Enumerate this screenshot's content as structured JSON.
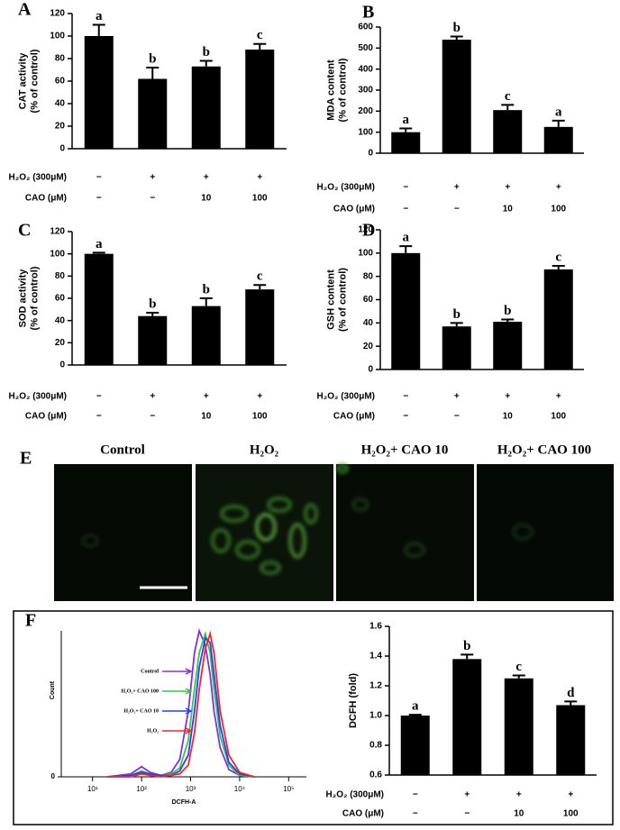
{
  "chart_data": [
    {
      "type": "bar",
      "panel": "A",
      "ylabel": [
        "CAT activity",
        "(% of control)"
      ],
      "values": [
        100,
        62,
        73,
        88
      ],
      "errors": [
        10,
        10,
        5,
        5
      ],
      "letters": [
        "a",
        "b",
        "b",
        "c"
      ],
      "color": "#000000",
      "ylim": [
        0,
        120
      ],
      "yticks": [
        0,
        20,
        40,
        60,
        80,
        100,
        120
      ],
      "treatments": [
        {
          "name": "H₂O₂ (300μM)",
          "values": [
            "−",
            "+",
            "+",
            "+"
          ]
        },
        {
          "name": "CAO (μM)",
          "values": [
            "−",
            "−",
            "10",
            "100"
          ]
        }
      ]
    },
    {
      "type": "bar",
      "panel": "B",
      "ylabel": [
        "MDA content",
        "(% of control)"
      ],
      "values": [
        100,
        540,
        205,
        125
      ],
      "errors": [
        18,
        15,
        25,
        30
      ],
      "letters": [
        "a",
        "b",
        "c",
        "a"
      ],
      "color": "#000000",
      "ylim": [
        0,
        600
      ],
      "yticks": [
        0,
        100,
        200,
        300,
        400,
        500,
        600
      ],
      "treatments": [
        {
          "name": "H₂O₂ (300μM)",
          "values": [
            "−",
            "+",
            "+",
            "+"
          ]
        },
        {
          "name": "CAO (μM)",
          "values": [
            "−",
            "−",
            "10",
            "100"
          ]
        }
      ]
    },
    {
      "type": "bar",
      "panel": "C",
      "ylabel": [
        "SOD activity",
        "(% of control)"
      ],
      "values": [
        100,
        44,
        53,
        68
      ],
      "errors": [
        1,
        3,
        7,
        4
      ],
      "letters": [
        "a",
        "b",
        "b",
        "c"
      ],
      "color": "#000000",
      "ylim": [
        0,
        120
      ],
      "yticks": [
        0,
        20,
        40,
        60,
        80,
        100,
        120
      ],
      "treatments": [
        {
          "name": "H₂O₂ (300μM)",
          "values": [
            "−",
            "+",
            "+",
            "+"
          ]
        },
        {
          "name": "CAO (μM)",
          "values": [
            "−",
            "−",
            "10",
            "100"
          ]
        }
      ]
    },
    {
      "type": "bar",
      "panel": "D",
      "ylabel": [
        "GSH content",
        "(% of control)"
      ],
      "values": [
        100,
        37,
        41,
        86
      ],
      "errors": [
        6,
        3,
        2,
        3
      ],
      "letters": [
        "a",
        "b",
        "b",
        "c"
      ],
      "color": "#000000",
      "ylim": [
        0,
        120
      ],
      "yticks": [
        0,
        20,
        40,
        60,
        80,
        100,
        120
      ],
      "treatments": [
        {
          "name": "H₂O₂ (300μM)",
          "values": [
            "−",
            "+",
            "+",
            "+"
          ]
        },
        {
          "name": "CAO (μM)",
          "values": [
            "−",
            "−",
            "10",
            "100"
          ]
        }
      ]
    },
    {
      "type": "line",
      "panel": "F",
      "xlabel": "DCFH-A",
      "ylabel": "Count",
      "xlog": true,
      "xlim": [
        2.3,
        230000
      ],
      "xticks": [
        {
          "value": 10,
          "label": "10¹"
        },
        {
          "value": 100,
          "label": "10²"
        },
        {
          "value": 1000,
          "label": "10³"
        },
        {
          "value": 10000,
          "label": "10⁴"
        },
        {
          "value": 100000,
          "label": "10⁵"
        }
      ],
      "ylim": [
        0,
        100
      ],
      "yticks": [
        0
      ],
      "x": [
        20,
        60,
        100,
        150,
        250,
        400,
        600,
        900,
        1200,
        1500,
        2000,
        2500,
        3000,
        4000,
        6000,
        10000,
        20000
      ],
      "series": [
        {
          "name": "Control",
          "color": "#8a2be2",
          "values": [
            0,
            2,
            7,
            3,
            1,
            3,
            12,
            45,
            85,
            100,
            90,
            70,
            45,
            20,
            5,
            1,
            0
          ]
        },
        {
          "name": "H₂O₂+ CAO 100",
          "color": "#2ecc40",
          "values": [
            0,
            1,
            4,
            2,
            1,
            2,
            6,
            25,
            60,
            85,
            98,
            85,
            60,
            28,
            8,
            1,
            0
          ]
        },
        {
          "name": "H₂O₂+ CAO 10",
          "color": "#1f3fff",
          "values": [
            0,
            1,
            3,
            2,
            1,
            1,
            4,
            15,
            45,
            75,
            95,
            92,
            70,
            35,
            10,
            2,
            0
          ]
        },
        {
          "name": "H₂O₂",
          "color": "#ff2020",
          "values": [
            0,
            0,
            2,
            1,
            0,
            1,
            2,
            8,
            30,
            60,
            88,
            98,
            85,
            45,
            15,
            3,
            0
          ]
        }
      ]
    },
    {
      "type": "bar",
      "ylabel": [
        "DCFH (fold)"
      ],
      "values": [
        1.0,
        1.38,
        1.25,
        1.07
      ],
      "errors": [
        0.005,
        0.03,
        0.02,
        0.025
      ],
      "letters": [
        "a",
        "b",
        "c",
        "d"
      ],
      "color": "#000000",
      "ylim": [
        0.6,
        1.6
      ],
      "yticks": [
        0.6,
        0.8,
        {
          "value": 1.0,
          "label": "1.0"
        },
        1.2,
        1.4,
        1.6
      ],
      "treatments": [
        {
          "name": "H₂O₂ (300μM)",
          "values": [
            "−",
            "+",
            "+",
            "+"
          ]
        },
        {
          "name": "CAO (μM)",
          "values": [
            "−",
            "−",
            "10",
            "100"
          ]
        }
      ]
    }
  ],
  "images": {
    "panel": "E",
    "labels": [
      "Control",
      "H₂O₂",
      "H₂O₂+ CAO 10",
      "H₂O₂+ CAO 100"
    ]
  }
}
